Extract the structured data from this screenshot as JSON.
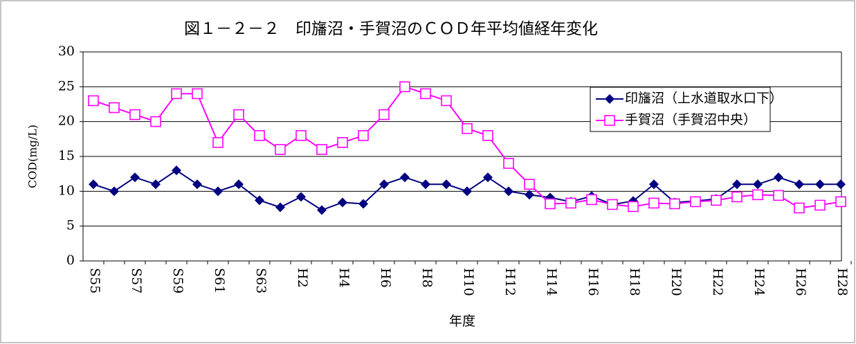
{
  "chart_data": {
    "type": "line",
    "title": "図１－２－２　印旛沼・手賀沼のＣＯＤ年平均値経年変化",
    "y_label": "COD(mg/L)",
    "x_label": "年度",
    "categories": [
      "S55",
      null,
      "S57",
      null,
      "S59",
      null,
      "S61",
      null,
      "S63",
      null,
      "H2",
      null,
      "H4",
      null,
      "H6",
      null,
      "H8",
      null,
      "H10",
      null,
      "H12",
      null,
      "H14",
      null,
      "H16",
      null,
      "H18",
      null,
      "H20",
      null,
      "H22",
      null,
      "H24",
      null,
      "H26",
      null,
      "H28"
    ],
    "series": [
      {
        "name": "印旛沼（上水道取水口下）",
        "color": "#000080",
        "marker": "diamond",
        "values": [
          11,
          10,
          12,
          11,
          13,
          11,
          10,
          11,
          8.7,
          7.7,
          9.2,
          7.3,
          8.4,
          8.2,
          11,
          12,
          11,
          11,
          10,
          12,
          10,
          9.5,
          9.1,
          8.5,
          9.3,
          8.1,
          8.6,
          11,
          8.4,
          8.6,
          8.9,
          11,
          11,
          12,
          11,
          11,
          11
        ]
      },
      {
        "name": "手賀沼（手賀沼中央）",
        "color": "#ff00ff",
        "marker": "square",
        "values": [
          23,
          22,
          21,
          20,
          24,
          24,
          17,
          21,
          18,
          16,
          18,
          16,
          17,
          18,
          21,
          25,
          24,
          23,
          19,
          18,
          14,
          11,
          8.2,
          8.3,
          8.8,
          8.1,
          7.8,
          8.3,
          8.2,
          8.5,
          8.7,
          9.2,
          9.5,
          9.4,
          7.6,
          8,
          8.5
        ]
      }
    ],
    "ylim": [
      0,
      30
    ],
    "yticks": [
      0,
      5,
      10,
      15,
      20,
      25,
      30
    ],
    "grid": true,
    "legend": "upper right"
  }
}
